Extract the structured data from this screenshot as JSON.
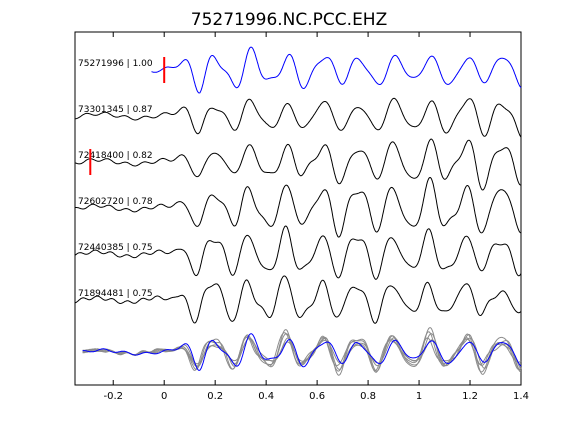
{
  "chart_data": {
    "type": "line",
    "title": "75271996.NC.PCC.EHZ",
    "xlabel": "",
    "ylabel": "",
    "xlim": [
      -0.35,
      1.4
    ],
    "x_ticks": [
      -0.2,
      0,
      0.2,
      0.4,
      0.6,
      0.8,
      1,
      1.2,
      1.4
    ],
    "x_tick_labels": [
      "-0.2",
      "0",
      "0.2",
      "0.4",
      "0.6",
      "0.8",
      "1",
      "1.2",
      "1.4"
    ],
    "grid": false,
    "legend": "none",
    "colors": {
      "reference": "#0000ff",
      "trace": "#000000",
      "stack": "#8c8c8c",
      "pick": "#ff0000",
      "axes": "#000000"
    },
    "traces": [
      {
        "id": "75271996",
        "cc": "1.00",
        "label": "75271996 | 1.00",
        "color": "#0000ff",
        "start": -0.05,
        "pick": 0.0,
        "amp": 1.0,
        "seed": 1
      },
      {
        "id": "73301345",
        "cc": "0.87",
        "label": "73301345 | 0.87",
        "color": "#000000",
        "start": -0.35,
        "pick": null,
        "amp": 1.0,
        "seed": 2
      },
      {
        "id": "72418400",
        "cc": "0.82",
        "label": "72418400 | 0.82",
        "color": "#000000",
        "start": -0.35,
        "pick": -0.29,
        "amp": 1.0,
        "seed": 3
      },
      {
        "id": "72602720",
        "cc": "0.78",
        "label": "72602720 | 0.78",
        "color": "#000000",
        "start": -0.35,
        "pick": null,
        "amp": 1.05,
        "seed": 4
      },
      {
        "id": "72440385",
        "cc": "0.75",
        "label": "72440385 | 0.75",
        "color": "#000000",
        "start": -0.35,
        "pick": null,
        "amp": 0.95,
        "seed": 5
      },
      {
        "id": "71894481",
        "cc": "0.75",
        "label": "71894481 | 0.75",
        "color": "#000000",
        "start": -0.35,
        "pick": null,
        "amp": 0.95,
        "seed": 6
      }
    ]
  }
}
